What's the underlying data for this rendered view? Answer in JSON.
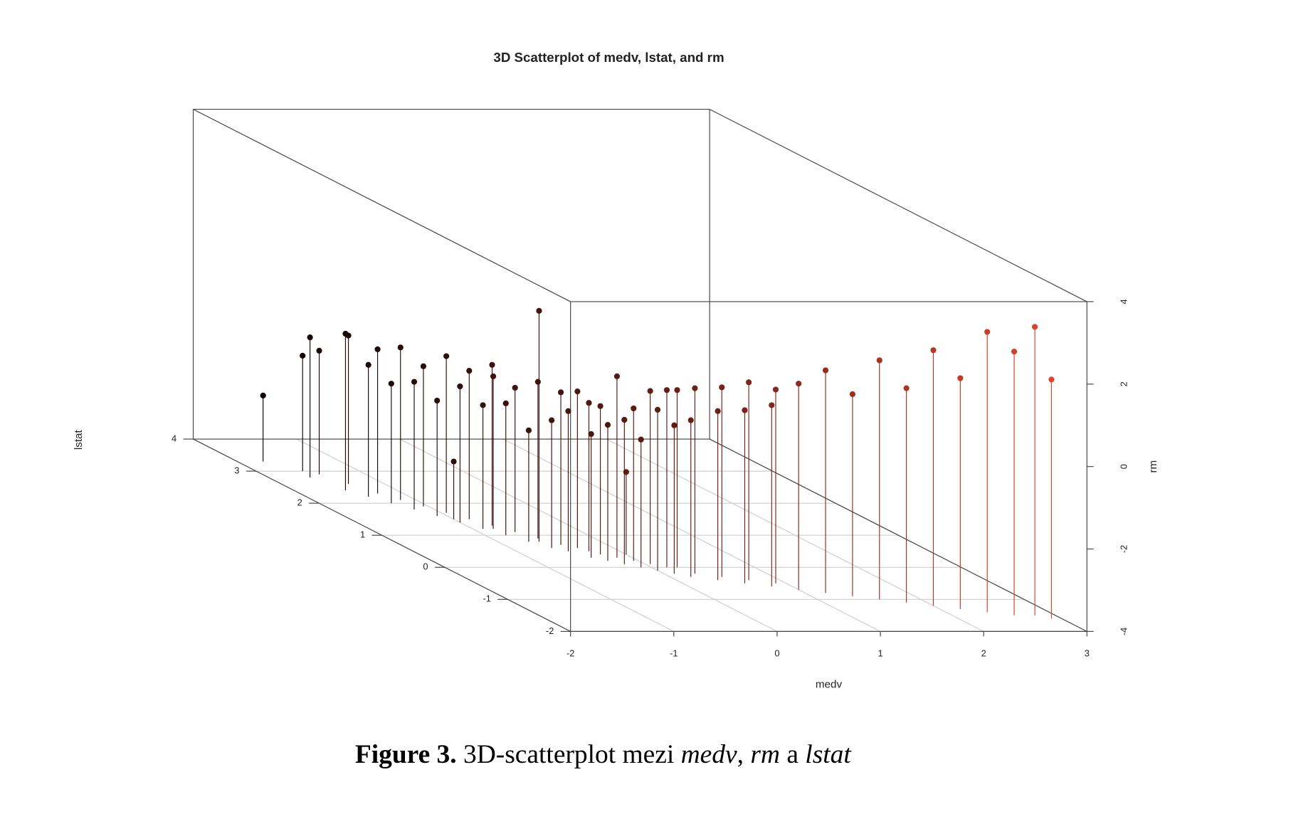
{
  "chart_data": {
    "type": "scatter3d",
    "title": "3D Scatterplot of medv, lstat, and rm",
    "x_label": "medv",
    "y_label": "lstat",
    "z_label": "rm",
    "xlim": [
      -2,
      3
    ],
    "xticks": [
      -2,
      -1,
      0,
      1,
      2,
      3
    ],
    "ylim": [
      -2,
      4
    ],
    "yticks": [
      -2,
      -1,
      0,
      1,
      2,
      3,
      4
    ],
    "zlim": [
      -4,
      4
    ],
    "zticks": [
      -4,
      -2,
      0,
      2,
      4
    ],
    "grid": true,
    "color_low": "#000000",
    "color_high": "#e8452c",
    "x": [
      -1.75,
      -1.6,
      -1.55,
      -1.5,
      -1.45,
      -1.4,
      -1.35,
      -1.3,
      -1.25,
      -1.2,
      -1.15,
      -1.1,
      -1.05,
      -1.0,
      -0.95,
      -0.9,
      -0.85,
      -0.8,
      -0.75,
      -0.7,
      -0.65,
      -0.6,
      -0.55,
      -0.5,
      -0.45,
      -0.4,
      -0.35,
      -0.3,
      -0.25,
      -0.2,
      -0.15,
      -0.1,
      -0.05,
      0,
      0.05,
      0.1,
      0.15,
      0.2,
      0.3,
      0.4,
      0.5,
      0.6,
      0.7,
      0.8,
      0.9,
      1.0,
      1.2,
      1.4,
      1.6,
      1.8,
      2.0,
      2.2,
      2.4,
      2.6,
      2.8,
      2.9,
      -1.0,
      -0.6,
      -0.3,
      0.0,
      0.25,
      -0.8
    ],
    "y": [
      3.3,
      2.8,
      3.0,
      2.4,
      2.9,
      2.2,
      2.6,
      2.0,
      2.3,
      1.8,
      2.1,
      1.6,
      1.9,
      1.4,
      1.7,
      1.2,
      1.5,
      1.0,
      1.3,
      0.8,
      1.1,
      0.6,
      0.9,
      0.5,
      0.7,
      0.3,
      0.6,
      0.2,
      0.4,
      0.1,
      0.3,
      0.0,
      0.2,
      -0.1,
      0.1,
      -0.2,
      0.0,
      -0.3,
      -0.2,
      -0.4,
      -0.3,
      -0.5,
      -0.4,
      -0.6,
      -0.5,
      -0.7,
      -0.8,
      -0.9,
      -1.0,
      -1.1,
      -1.2,
      -1.3,
      -1.4,
      -1.5,
      -1.5,
      -1.6,
      1.5,
      0.8,
      0.5,
      0.4,
      0.0,
      1.2
    ],
    "z": [
      -2.4,
      -0.6,
      -1.2,
      -0.2,
      -1.0,
      -0.8,
      -0.4,
      -1.1,
      -0.5,
      -0.9,
      -0.3,
      -1.2,
      -0.6,
      -0.7,
      -0.2,
      -1.0,
      -0.4,
      -0.8,
      -0.1,
      -1.3,
      -0.5,
      -0.9,
      -0.2,
      -0.6,
      -0.3,
      -1.0,
      -0.2,
      -0.7,
      -0.4,
      -0.5,
      0.4,
      -0.9,
      -0.3,
      -0.1,
      0.2,
      -0.4,
      0.3,
      -0.2,
      0.5,
      0.1,
      0.6,
      0.2,
      0.8,
      0.4,
      0.7,
      1.0,
      1.4,
      0.9,
      1.8,
      1.2,
      2.2,
      1.6,
      2.8,
      2.4,
      3.0,
      1.8,
      -2.6,
      1.6,
      -0.4,
      -2.0,
      0.3,
      -0.3
    ]
  },
  "caption": {
    "label": "Figure 3.",
    "text": [
      " 3D-scatterplot mezi ",
      "medv",
      ", ",
      "rm",
      " a ",
      "lstat"
    ]
  }
}
